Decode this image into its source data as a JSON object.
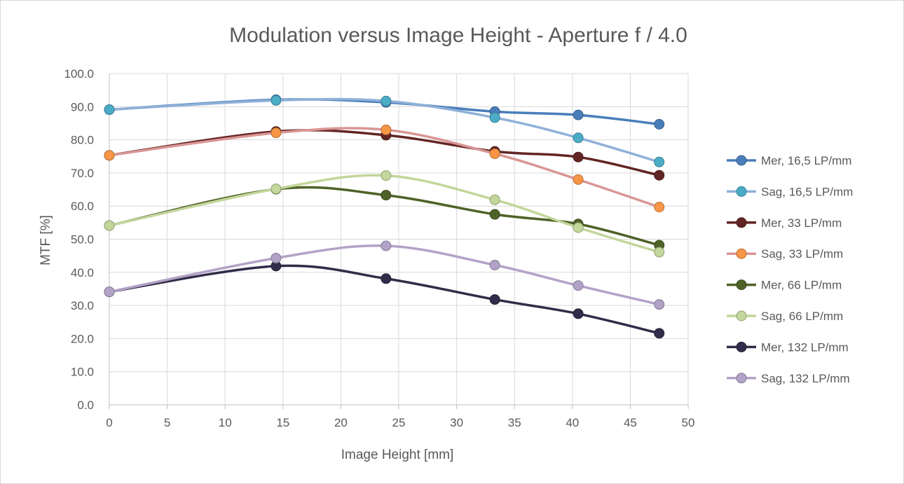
{
  "chart_data": {
    "type": "line",
    "title": "Modulation versus Image Height - Aperture f / 4.0",
    "xlabel": "Image Height [mm]",
    "ylabel": "MTF [%]",
    "xlim": [
      0,
      50
    ],
    "ylim": [
      0,
      100
    ],
    "x_ticks": [
      "0",
      "5",
      "10",
      "15",
      "20",
      "25",
      "30",
      "35",
      "40",
      "45",
      "50"
    ],
    "y_ticks": [
      "0.0",
      "10.0",
      "20.0",
      "30.0",
      "40.0",
      "50.0",
      "60.0",
      "70.0",
      "80.0",
      "90.0",
      "100.0"
    ],
    "grid": true,
    "smooth": true,
    "legend_position": "right",
    "x": [
      0,
      14.4,
      23.9,
      33.3,
      40.5,
      47.5
    ],
    "series": [
      {
        "name": "Mer, 16,5 LP/mm",
        "values": [
          89.1,
          92.1,
          91.3,
          88.5,
          87.5,
          84.7
        ],
        "line_color": "#4a7ebb",
        "marker_color": "#4a7ebb"
      },
      {
        "name": "Sag, 16,5 LP/mm",
        "values": [
          89.1,
          91.9,
          91.7,
          86.7,
          80.6,
          73.3
        ],
        "line_color": "#8fb0d8",
        "marker_color": "#4bacc6"
      },
      {
        "name": "Mer, 33 LP/mm",
        "values": [
          75.3,
          82.5,
          81.4,
          76.5,
          74.8,
          69.3
        ],
        "line_color": "#632523",
        "marker_color": "#632523"
      },
      {
        "name": "Sag, 33 LP/mm",
        "values": [
          75.3,
          82.1,
          83.0,
          75.8,
          68.0,
          59.7
        ],
        "line_color": "#d99694",
        "marker_color": "#f79646"
      },
      {
        "name": "Mer, 66 LP/mm",
        "values": [
          54.1,
          65.1,
          63.3,
          57.5,
          54.6,
          48.2
        ],
        "line_color": "#4f6228",
        "marker_color": "#4f6228"
      },
      {
        "name": "Sag, 66 LP/mm",
        "values": [
          54.1,
          65.2,
          69.2,
          61.9,
          53.5,
          46.1
        ],
        "line_color": "#c3d69b",
        "marker_color": "#c3d69b"
      },
      {
        "name": "Mer, 132 LP/mm",
        "values": [
          34.1,
          41.9,
          38.1,
          31.8,
          27.5,
          21.6
        ],
        "line_color": "#312c49",
        "marker_color": "#312c49"
      },
      {
        "name": "Sag, 132 LP/mm",
        "values": [
          34.1,
          44.3,
          48.0,
          42.2,
          36.0,
          30.3
        ],
        "line_color": "#b3a2c7",
        "marker_color": "#b3a2c7"
      }
    ]
  }
}
